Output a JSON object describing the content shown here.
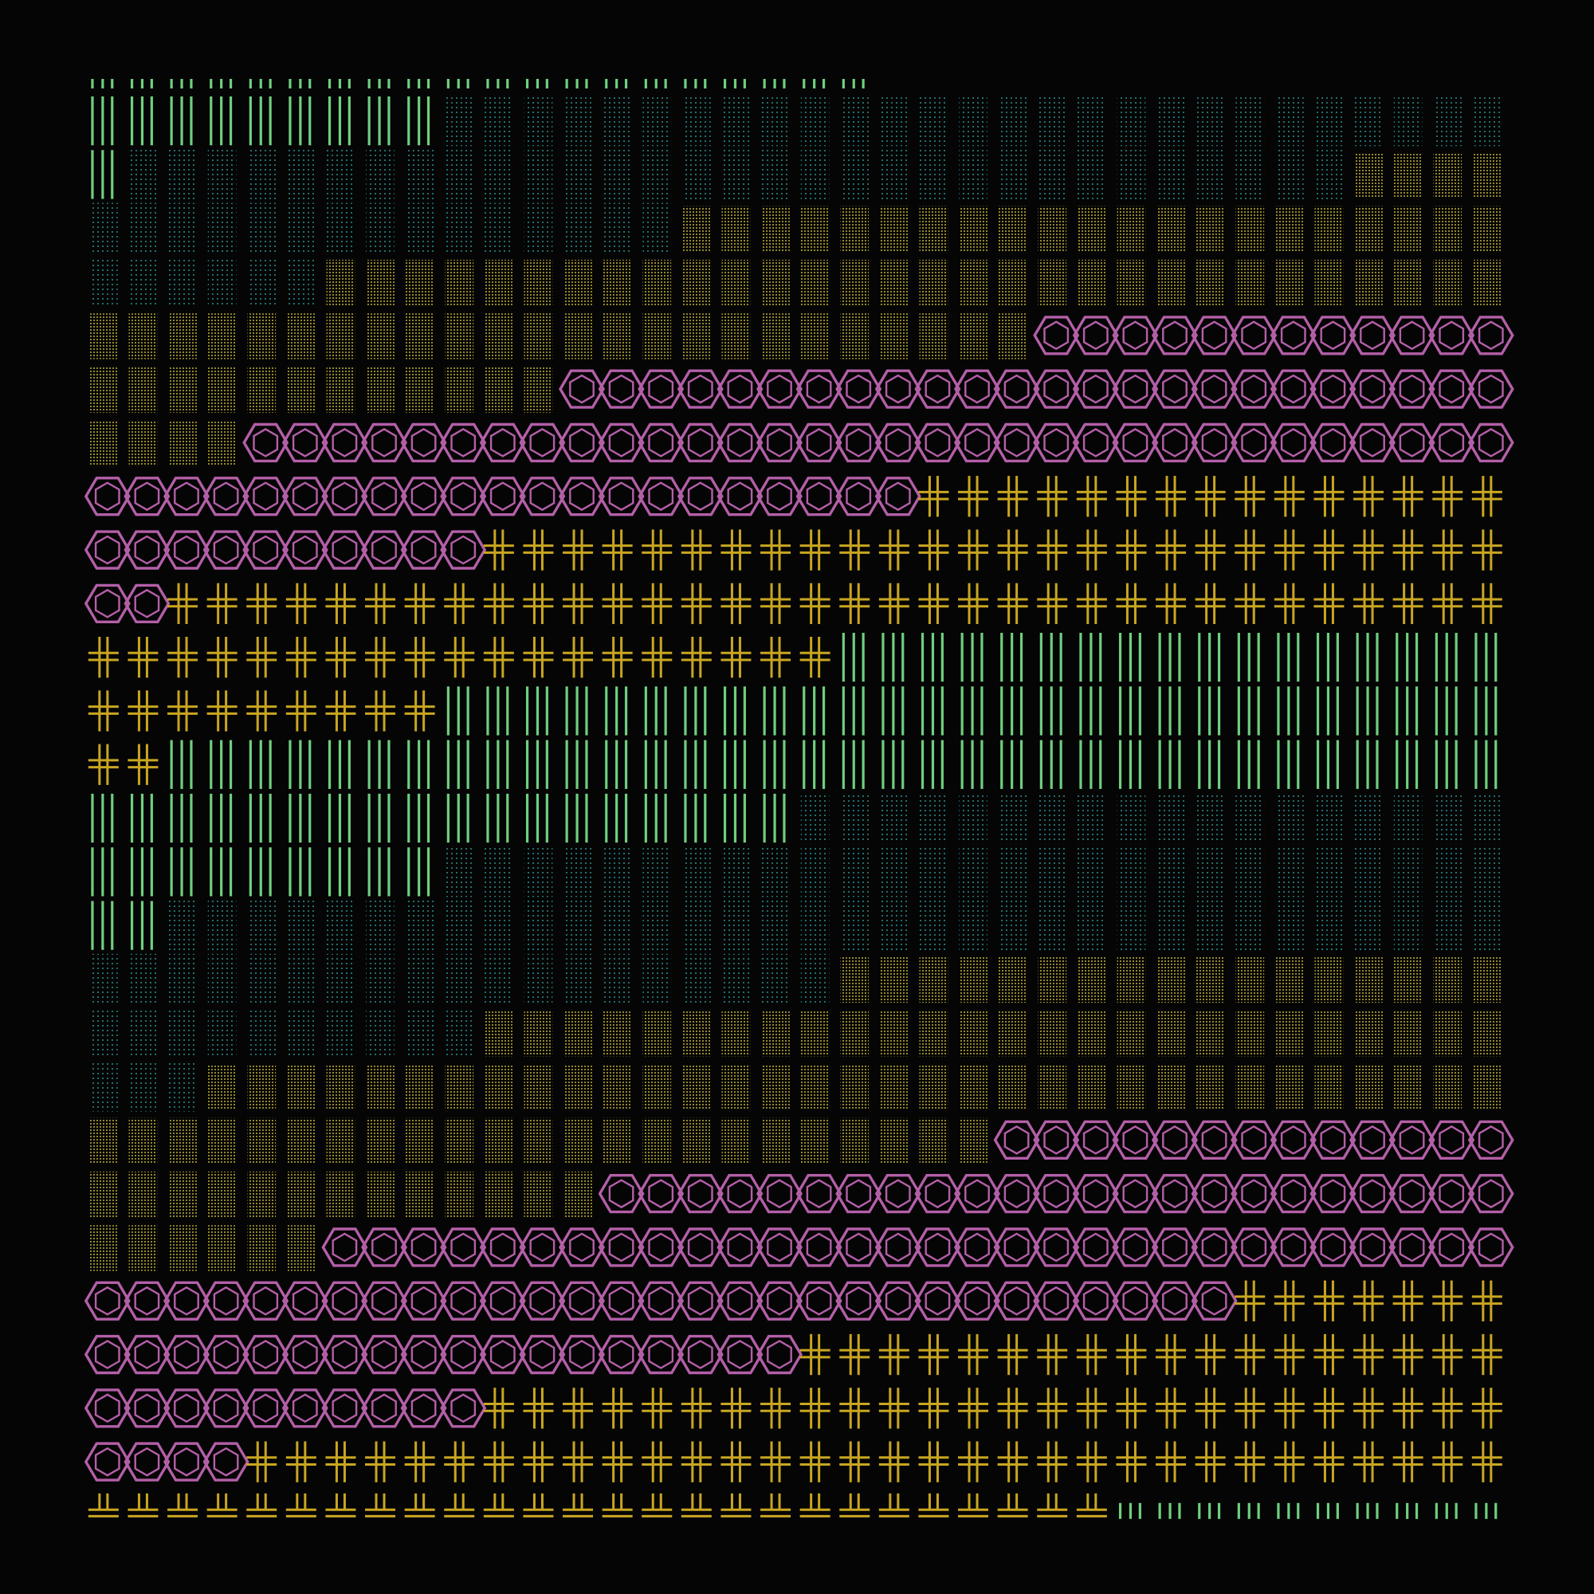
{
  "background": "#050505",
  "palette": {
    "green": "#6fcf7f",
    "teal": "#2f9a9a",
    "yellow": "#d9c640",
    "magenta": "#b45fa8",
    "gold": "#c9a621"
  },
  "pattern_names": [
    "bars-pattern",
    "teal-dots-pattern",
    "yellow-dots-pattern",
    "hexagon-pattern",
    "cross-pattern",
    "ledge-pattern"
  ]
}
